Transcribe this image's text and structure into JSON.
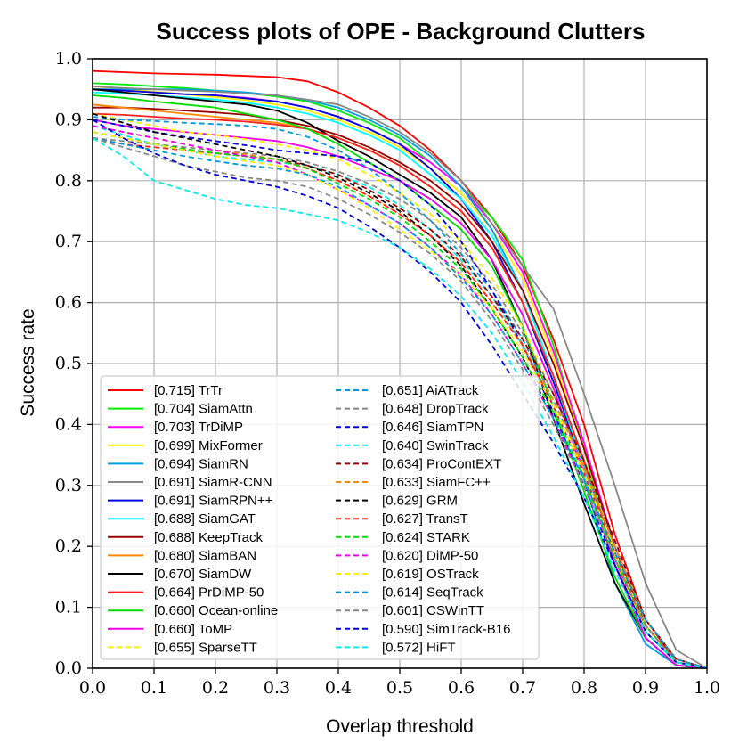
{
  "chart_data": {
    "type": "line",
    "title": "Success plots of OPE - Background Clutters",
    "xlabel": "Overlap threshold",
    "ylabel": "Success rate",
    "xlim": [
      0,
      1
    ],
    "ylim": [
      0,
      1
    ],
    "grid": true,
    "legend_position": "lower-left",
    "x_ticks": [
      "0.0",
      "0.1",
      "0.2",
      "0.3",
      "0.4",
      "0.5",
      "0.6",
      "0.7",
      "0.8",
      "0.9",
      "1.0"
    ],
    "y_ticks": [
      "0.0",
      "0.1",
      "0.2",
      "0.3",
      "0.4",
      "0.5",
      "0.6",
      "0.7",
      "0.8",
      "0.9",
      "1.0"
    ],
    "x": [
      0,
      0.05,
      0.1,
      0.15,
      0.2,
      0.25,
      0.3,
      0.35,
      0.4,
      0.45,
      0.5,
      0.55,
      0.6,
      0.65,
      0.7,
      0.75,
      0.8,
      0.85,
      0.9,
      0.95,
      1.0
    ],
    "series": [
      {
        "name": "TrTr",
        "score": "[0.715]",
        "legend_label": "[0.715] TrTr",
        "color": "#ff0000",
        "dash": "solid",
        "values": [
          0.98,
          0.978,
          0.976,
          0.975,
          0.974,
          0.972,
          0.97,
          0.963,
          0.945,
          0.92,
          0.89,
          0.85,
          0.8,
          0.74,
          0.66,
          0.54,
          0.4,
          0.22,
          0.08,
          0.01,
          0.0
        ]
      },
      {
        "name": "SiamAttn",
        "score": "[0.704]",
        "legend_label": "[0.704] SiamAttn",
        "color": "#00ee00",
        "dash": "solid",
        "values": [
          0.96,
          0.958,
          0.955,
          0.952,
          0.948,
          0.944,
          0.938,
          0.93,
          0.915,
          0.895,
          0.87,
          0.83,
          0.79,
          0.74,
          0.67,
          0.53,
          0.36,
          0.17,
          0.05,
          0.005,
          0.0
        ]
      },
      {
        "name": "TrDiMP",
        "score": "[0.703]",
        "legend_label": "[0.703] TrDiMP",
        "color": "#ff00ff",
        "dash": "solid",
        "values": [
          0.95,
          0.948,
          0.945,
          0.942,
          0.94,
          0.936,
          0.93,
          0.92,
          0.905,
          0.885,
          0.86,
          0.83,
          0.79,
          0.73,
          0.65,
          0.52,
          0.37,
          0.2,
          0.07,
          0.01,
          0.0
        ]
      },
      {
        "name": "MixFormer",
        "score": "[0.699]",
        "legend_label": "[0.699] MixFormer",
        "color": "#ffee00",
        "dash": "solid",
        "values": [
          0.955,
          0.95,
          0.946,
          0.942,
          0.937,
          0.932,
          0.925,
          0.915,
          0.9,
          0.88,
          0.855,
          0.82,
          0.78,
          0.72,
          0.64,
          0.51,
          0.36,
          0.19,
          0.06,
          0.01,
          0.0
        ]
      },
      {
        "name": "SiamRN",
        "score": "[0.694]",
        "legend_label": "[0.694] SiamRN",
        "color": "#00a0e0",
        "dash": "solid",
        "values": [
          0.95,
          0.95,
          0.95,
          0.95,
          0.948,
          0.945,
          0.94,
          0.932,
          0.92,
          0.9,
          0.875,
          0.84,
          0.79,
          0.72,
          0.62,
          0.48,
          0.31,
          0.14,
          0.04,
          0.005,
          0.0
        ]
      },
      {
        "name": "SiamR-CNN",
        "score": "[0.691]",
        "legend_label": "[0.691] SiamR-CNN",
        "color": "#888888",
        "dash": "solid",
        "values": [
          0.955,
          0.952,
          0.95,
          0.948,
          0.946,
          0.943,
          0.94,
          0.933,
          0.925,
          0.905,
          0.88,
          0.845,
          0.8,
          0.73,
          0.66,
          0.59,
          0.45,
          0.3,
          0.14,
          0.03,
          0.0
        ]
      },
      {
        "name": "SiamRPN++",
        "score": "[0.691]",
        "legend_label": "[0.691] SiamRPN++",
        "color": "#0000dd",
        "dash": "solid",
        "values": [
          0.95,
          0.948,
          0.945,
          0.942,
          0.94,
          0.935,
          0.93,
          0.92,
          0.905,
          0.885,
          0.86,
          0.82,
          0.77,
          0.7,
          0.6,
          0.47,
          0.33,
          0.17,
          0.05,
          0.005,
          0.0
        ]
      },
      {
        "name": "SiamGAT",
        "score": "[0.688]",
        "legend_label": "[0.688] SiamGAT",
        "color": "#00ffff",
        "dash": "solid",
        "values": [
          0.945,
          0.943,
          0.94,
          0.937,
          0.933,
          0.928,
          0.92,
          0.91,
          0.895,
          0.875,
          0.85,
          0.81,
          0.77,
          0.71,
          0.62,
          0.48,
          0.33,
          0.17,
          0.05,
          0.005,
          0.0
        ]
      },
      {
        "name": "KeepTrack",
        "score": "[0.688]",
        "legend_label": "[0.688] KeepTrack",
        "color": "#990000",
        "dash": "solid",
        "values": [
          0.92,
          0.92,
          0.918,
          0.915,
          0.912,
          0.908,
          0.9,
          0.89,
          0.875,
          0.855,
          0.83,
          0.8,
          0.76,
          0.7,
          0.62,
          0.5,
          0.36,
          0.2,
          0.07,
          0.01,
          0.0
        ]
      },
      {
        "name": "SiamBAN",
        "score": "[0.680]",
        "legend_label": "[0.680] SiamBAN",
        "color": "#ff8800",
        "dash": "solid",
        "values": [
          0.925,
          0.92,
          0.915,
          0.91,
          0.905,
          0.9,
          0.895,
          0.885,
          0.87,
          0.85,
          0.825,
          0.79,
          0.75,
          0.69,
          0.6,
          0.48,
          0.34,
          0.18,
          0.06,
          0.01,
          0.0
        ]
      },
      {
        "name": "SiamDW",
        "score": "[0.670]",
        "legend_label": "[0.670] SiamDW",
        "color": "#000000",
        "dash": "solid",
        "values": [
          0.95,
          0.945,
          0.94,
          0.935,
          0.93,
          0.925,
          0.915,
          0.895,
          0.865,
          0.84,
          0.81,
          0.78,
          0.74,
          0.67,
          0.56,
          0.41,
          0.27,
          0.14,
          0.05,
          0.005,
          0.0
        ]
      },
      {
        "name": "PrDiMP-50",
        "score": "[0.664]",
        "legend_label": "[0.664] PrDiMP-50",
        "color": "#ff2020",
        "dash": "solid",
        "values": [
          0.91,
          0.908,
          0.905,
          0.902,
          0.9,
          0.897,
          0.892,
          0.885,
          0.87,
          0.85,
          0.825,
          0.79,
          0.75,
          0.69,
          0.6,
          0.48,
          0.34,
          0.18,
          0.06,
          0.01,
          0.0
        ]
      },
      {
        "name": "Ocean-online",
        "score": "[0.660]",
        "legend_label": "[0.660] Ocean-online",
        "color": "#00dd00",
        "dash": "solid",
        "values": [
          0.94,
          0.936,
          0.93,
          0.925,
          0.92,
          0.91,
          0.9,
          0.885,
          0.86,
          0.83,
          0.8,
          0.76,
          0.72,
          0.66,
          0.56,
          0.43,
          0.29,
          0.15,
          0.05,
          0.005,
          0.0
        ]
      },
      {
        "name": "ToMP",
        "score": "[0.660]",
        "legend_label": "[0.660] ToMP",
        "color": "#ee00ee",
        "dash": "solid",
        "values": [
          0.9,
          0.89,
          0.885,
          0.88,
          0.875,
          0.87,
          0.865,
          0.855,
          0.84,
          0.82,
          0.8,
          0.77,
          0.73,
          0.67,
          0.58,
          0.46,
          0.32,
          0.17,
          0.05,
          0.005,
          0.0
        ]
      },
      {
        "name": "SparseTT",
        "score": "[0.655]",
        "legend_label": "[0.655] SparseTT",
        "color": "#ffee00",
        "dash": "dashed",
        "values": [
          0.91,
          0.9,
          0.89,
          0.88,
          0.875,
          0.868,
          0.86,
          0.85,
          0.835,
          0.81,
          0.78,
          0.745,
          0.7,
          0.64,
          0.56,
          0.45,
          0.32,
          0.18,
          0.06,
          0.01,
          0.0
        ]
      },
      {
        "name": "AiATrack",
        "score": "[0.651]",
        "legend_label": "[0.651] AiATrack",
        "color": "#0099dd",
        "dash": "dashed",
        "values": [
          0.905,
          0.9,
          0.898,
          0.895,
          0.893,
          0.89,
          0.885,
          0.872,
          0.85,
          0.82,
          0.78,
          0.735,
          0.68,
          0.62,
          0.54,
          0.44,
          0.33,
          0.2,
          0.08,
          0.015,
          0.0
        ]
      },
      {
        "name": "DropTrack",
        "score": "[0.648]",
        "legend_label": "[0.648] DropTrack",
        "color": "#888888",
        "dash": "dashed",
        "values": [
          0.87,
          0.865,
          0.86,
          0.855,
          0.85,
          0.845,
          0.84,
          0.83,
          0.815,
          0.795,
          0.77,
          0.735,
          0.69,
          0.63,
          0.55,
          0.45,
          0.33,
          0.2,
          0.08,
          0.015,
          0.0
        ]
      },
      {
        "name": "SiamTPN",
        "score": "[0.646]",
        "legend_label": "[0.646] SiamTPN",
        "color": "#0000dd",
        "dash": "dashed",
        "values": [
          0.9,
          0.89,
          0.88,
          0.872,
          0.865,
          0.858,
          0.85,
          0.845,
          0.84,
          0.83,
          0.8,
          0.76,
          0.7,
          0.62,
          0.53,
          0.42,
          0.3,
          0.17,
          0.06,
          0.01,
          0.0
        ]
      },
      {
        "name": "SwinTrack",
        "score": "[0.640]",
        "legend_label": "[0.640] SwinTrack",
        "color": "#00eeee",
        "dash": "dashed",
        "values": [
          0.89,
          0.875,
          0.86,
          0.85,
          0.84,
          0.835,
          0.83,
          0.825,
          0.81,
          0.79,
          0.76,
          0.72,
          0.67,
          0.61,
          0.53,
          0.43,
          0.31,
          0.18,
          0.07,
          0.01,
          0.0
        ]
      },
      {
        "name": "ProContEXT",
        "score": "[0.634]",
        "legend_label": "[0.634] ProContEXT",
        "color": "#990000",
        "dash": "dashed",
        "values": [
          0.88,
          0.87,
          0.86,
          0.852,
          0.845,
          0.84,
          0.835,
          0.825,
          0.81,
          0.785,
          0.755,
          0.72,
          0.675,
          0.61,
          0.54,
          0.45,
          0.34,
          0.21,
          0.08,
          0.015,
          0.0
        ]
      },
      {
        "name": "SiamFC++",
        "score": "[0.633]",
        "legend_label": "[0.633] SiamFC++",
        "color": "#ff8800",
        "dash": "dashed",
        "values": [
          0.89,
          0.88,
          0.87,
          0.86,
          0.85,
          0.843,
          0.835,
          0.82,
          0.8,
          0.775,
          0.745,
          0.71,
          0.665,
          0.6,
          0.53,
          0.44,
          0.33,
          0.2,
          0.08,
          0.015,
          0.0
        ]
      },
      {
        "name": "GRM",
        "score": "[0.629]",
        "legend_label": "[0.629] GRM",
        "color": "#000000",
        "dash": "dashed",
        "values": [
          0.91,
          0.895,
          0.88,
          0.87,
          0.86,
          0.85,
          0.84,
          0.825,
          0.805,
          0.78,
          0.75,
          0.71,
          0.66,
          0.59,
          0.51,
          0.41,
          0.3,
          0.18,
          0.07,
          0.01,
          0.0
        ]
      },
      {
        "name": "TransT",
        "score": "[0.627]",
        "legend_label": "[0.627] TransT",
        "color": "#ff2020",
        "dash": "dashed",
        "values": [
          0.87,
          0.86,
          0.855,
          0.85,
          0.845,
          0.84,
          0.835,
          0.82,
          0.8,
          0.775,
          0.745,
          0.71,
          0.665,
          0.6,
          0.53,
          0.43,
          0.32,
          0.19,
          0.07,
          0.01,
          0.0
        ]
      },
      {
        "name": "STARK",
        "score": "[0.624]",
        "legend_label": "[0.624] STARK",
        "color": "#00dd00",
        "dash": "dashed",
        "values": [
          0.88,
          0.87,
          0.86,
          0.852,
          0.845,
          0.84,
          0.835,
          0.82,
          0.795,
          0.77,
          0.74,
          0.7,
          0.655,
          0.59,
          0.51,
          0.42,
          0.31,
          0.18,
          0.07,
          0.01,
          0.0
        ]
      },
      {
        "name": "DiMP-50",
        "score": "[0.620]",
        "legend_label": "[0.620] DiMP-50",
        "color": "#ee00ee",
        "dash": "dashed",
        "values": [
          0.89,
          0.88,
          0.87,
          0.86,
          0.85,
          0.84,
          0.83,
          0.81,
          0.785,
          0.76,
          0.73,
          0.69,
          0.645,
          0.58,
          0.5,
          0.41,
          0.3,
          0.18,
          0.07,
          0.01,
          0.0
        ]
      },
      {
        "name": "OSTrack",
        "score": "[0.619]",
        "legend_label": "[0.619] OSTrack",
        "color": "#ffee00",
        "dash": "dashed",
        "values": [
          0.88,
          0.87,
          0.86,
          0.85,
          0.84,
          0.832,
          0.825,
          0.81,
          0.785,
          0.755,
          0.72,
          0.685,
          0.645,
          0.59,
          0.52,
          0.43,
          0.32,
          0.19,
          0.07,
          0.01,
          0.0
        ]
      },
      {
        "name": "SeqTrack",
        "score": "[0.614]",
        "legend_label": "[0.614] SeqTrack",
        "color": "#0099dd",
        "dash": "dashed",
        "values": [
          0.87,
          0.86,
          0.85,
          0.84,
          0.832,
          0.825,
          0.82,
          0.81,
          0.79,
          0.76,
          0.73,
          0.69,
          0.64,
          0.58,
          0.5,
          0.41,
          0.31,
          0.19,
          0.08,
          0.015,
          0.0
        ]
      },
      {
        "name": "CSWinTT",
        "score": "[0.601]",
        "legend_label": "[0.601] CSWinTT",
        "color": "#888888",
        "dash": "dashed",
        "values": [
          0.87,
          0.855,
          0.84,
          0.825,
          0.815,
          0.805,
          0.8,
          0.79,
          0.77,
          0.745,
          0.715,
          0.68,
          0.635,
          0.57,
          0.49,
          0.4,
          0.3,
          0.18,
          0.07,
          0.01,
          0.0
        ]
      },
      {
        "name": "SimTrack-B16",
        "score": "[0.590]",
        "legend_label": "[0.590] SimTrack-B16",
        "color": "#0000dd",
        "dash": "dashed",
        "values": [
          0.9,
          0.87,
          0.845,
          0.825,
          0.81,
          0.8,
          0.79,
          0.775,
          0.755,
          0.725,
          0.69,
          0.65,
          0.6,
          0.53,
          0.45,
          0.37,
          0.28,
          0.17,
          0.06,
          0.01,
          0.0
        ]
      },
      {
        "name": "HiFT",
        "score": "[0.572]",
        "legend_label": "[0.572] HiFT",
        "color": "#00eeee",
        "dash": "dashed",
        "values": [
          0.87,
          0.84,
          0.8,
          0.785,
          0.77,
          0.76,
          0.755,
          0.745,
          0.735,
          0.715,
          0.69,
          0.655,
          0.61,
          0.55,
          0.47,
          0.38,
          0.28,
          0.16,
          0.06,
          0.01,
          0.0
        ]
      }
    ]
  }
}
